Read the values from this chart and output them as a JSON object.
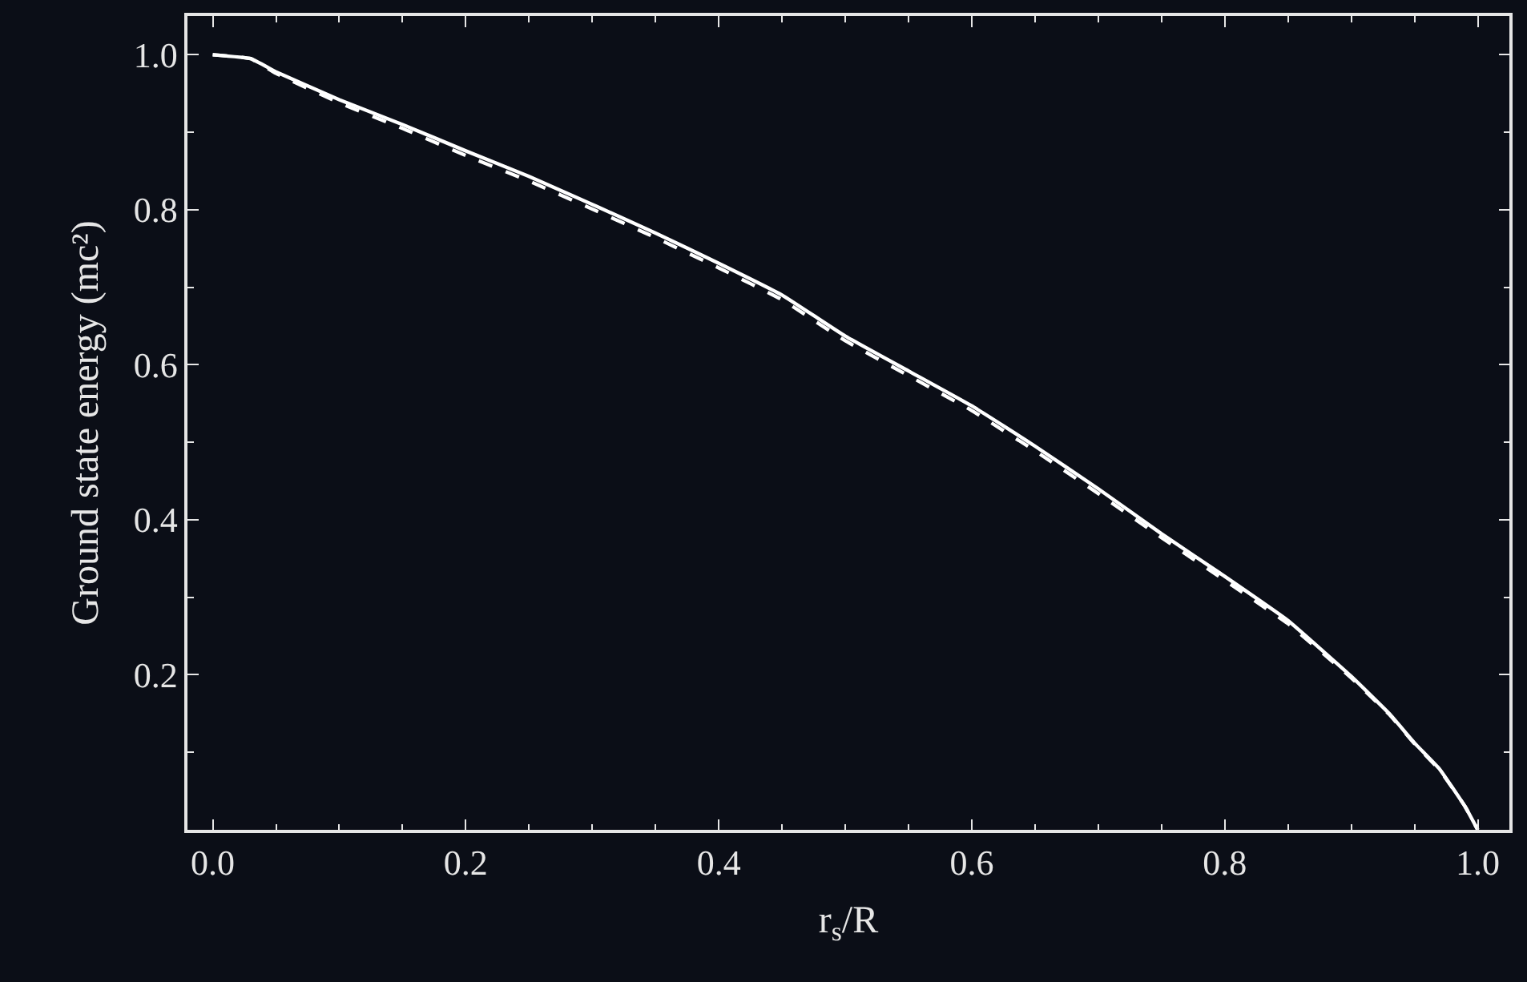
{
  "chart_data": {
    "type": "line",
    "xlabel": "r$_{s}$/R",
    "ylabel": "Ground state energy (mc²)",
    "x": [
      0,
      0.03,
      0.05,
      0.1,
      0.15,
      0.2,
      0.25,
      0.3,
      0.35,
      0.4,
      0.45,
      0.5,
      0.55,
      0.6,
      0.65,
      0.7,
      0.75,
      0.8,
      0.85,
      0.9,
      0.93,
      0.95,
      0.97,
      0.99,
      1.0
    ],
    "series": [
      {
        "color": "#ffffff",
        "line_style": "solid",
        "values": [
          1.0,
          0.995,
          0.978,
          0.942,
          0.91,
          0.876,
          0.843,
          0.807,
          0.77,
          0.731,
          0.69,
          0.637,
          0.592,
          0.547,
          0.495,
          0.44,
          0.382,
          0.327,
          0.27,
          0.198,
          0.15,
          0.112,
          0.078,
          0.03,
          0.0
        ]
      },
      {
        "color": "#ffffff",
        "line_style": "dashed",
        "values": [
          1.0,
          0.995,
          0.976,
          0.938,
          0.905,
          0.87,
          0.837,
          0.801,
          0.764,
          0.725,
          0.684,
          0.631,
          0.586,
          0.541,
          0.489,
          0.434,
          0.377,
          0.322,
          0.266,
          0.196,
          0.149,
          0.111,
          0.077,
          0.03,
          0.0
        ]
      }
    ],
    "xlim": [
      -0.02,
      1.025
    ],
    "ylim": [
      0,
      1.05
    ],
    "xticks": [
      {
        "value": 0,
        "label": "0.0"
      },
      0.2,
      0.4,
      0.6,
      0.8,
      {
        "value": 1,
        "label": "1.0"
      }
    ],
    "yticks": [
      0.2,
      0.4,
      0.6,
      0.8,
      {
        "value": 1,
        "label": "1.0"
      }
    ],
    "marker": "none"
  }
}
